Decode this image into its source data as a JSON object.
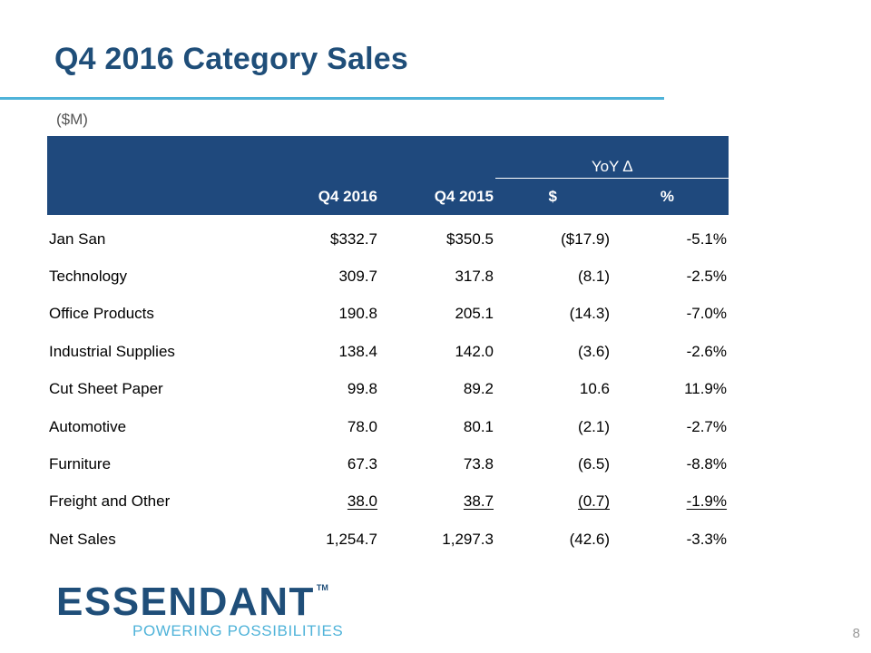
{
  "slide": {
    "title": "Q4 2016 Category Sales",
    "units": "($M)",
    "page_number": "8"
  },
  "table": {
    "yoy_header": "YoY ∆",
    "columns": [
      "",
      "Q4 2016",
      "Q4 2015",
      "$",
      "%"
    ],
    "rows": [
      {
        "category": "Jan San",
        "q4_2016": "$332.7",
        "q4_2015": "$350.5",
        "yoy_dollar": "($17.9)",
        "yoy_pct": "-5.1%"
      },
      {
        "category": "Technology",
        "q4_2016": "309.7",
        "q4_2015": "317.8",
        "yoy_dollar": "(8.1)",
        "yoy_pct": "-2.5%"
      },
      {
        "category": "Office Products",
        "q4_2016": "190.8",
        "q4_2015": "205.1",
        "yoy_dollar": "(14.3)",
        "yoy_pct": "-7.0%"
      },
      {
        "category": "Industrial Supplies",
        "q4_2016": "138.4",
        "q4_2015": "142.0",
        "yoy_dollar": "(3.6)",
        "yoy_pct": "-2.6%"
      },
      {
        "category": "Cut Sheet Paper",
        "q4_2016": "99.8",
        "q4_2015": "89.2",
        "yoy_dollar": "10.6",
        "yoy_pct": "11.9%"
      },
      {
        "category": "Automotive",
        "q4_2016": "78.0",
        "q4_2015": "80.1",
        "yoy_dollar": "(2.1)",
        "yoy_pct": "-2.7%"
      },
      {
        "category": "Furniture",
        "q4_2016": "67.3",
        "q4_2015": "73.8",
        "yoy_dollar": "(6.5)",
        "yoy_pct": "-8.8%"
      },
      {
        "category": "Freight and Other",
        "q4_2016": "38.0",
        "q4_2015": "38.7",
        "yoy_dollar": "(0.7)",
        "yoy_pct": "-1.9%"
      },
      {
        "category": "Net Sales",
        "q4_2016": "1,254.7",
        "q4_2015": "1,297.3",
        "yoy_dollar": "(42.6)",
        "yoy_pct": "-3.3%"
      }
    ]
  },
  "logo": {
    "wordmark": "ESSENDANT",
    "trademark": "TM",
    "tagline": "POWERING POSSIBILITIES"
  },
  "colors": {
    "title": "#1f4e79",
    "accent_rule": "#4fb3d9",
    "header_bg": "#1f497d"
  }
}
